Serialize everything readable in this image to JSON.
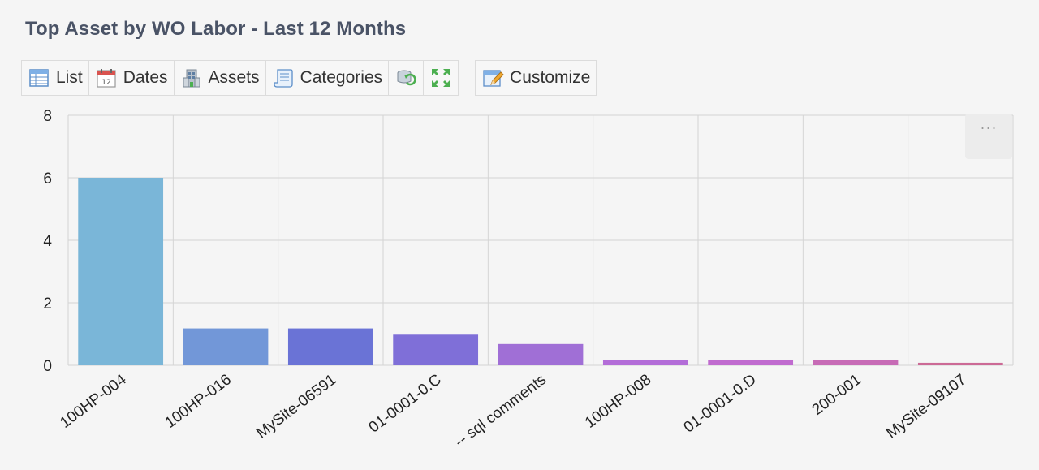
{
  "title": "Top Asset by WO Labor - Last 12 Months",
  "toolbar": {
    "list_label": "List",
    "dates_label": "Dates",
    "assets_label": "Assets",
    "categories_label": "Categories",
    "customize_label": "Customize",
    "icons": [
      "list-icon",
      "calendar-icon",
      "building-icon",
      "scroll-icon",
      "refresh-icon",
      "expand-icon",
      "customize-icon"
    ]
  },
  "menu_button_label": "···",
  "chart_data": {
    "type": "bar",
    "categories": [
      "100HP-004",
      "100HP-016",
      "MySite-06591",
      "01-0001-0.C",
      "-- sql comments",
      "100HP-008",
      "01-0001-0.D",
      "200-001",
      "MySite-09107"
    ],
    "values": [
      6.0,
      1.18,
      1.18,
      0.98,
      0.68,
      0.18,
      0.18,
      0.18,
      0.08
    ],
    "colors": [
      "#7ab6d8",
      "#7297d8",
      "#6a73d6",
      "#7f6fd8",
      "#a06fd6",
      "#b36dd8",
      "#c06bcf",
      "#c76bb6",
      "#cc6a96"
    ],
    "ylim": [
      0,
      8
    ],
    "yticks": [
      0,
      2,
      4,
      6,
      8
    ],
    "grid": true,
    "title": "",
    "xlabel": "",
    "ylabel": ""
  }
}
